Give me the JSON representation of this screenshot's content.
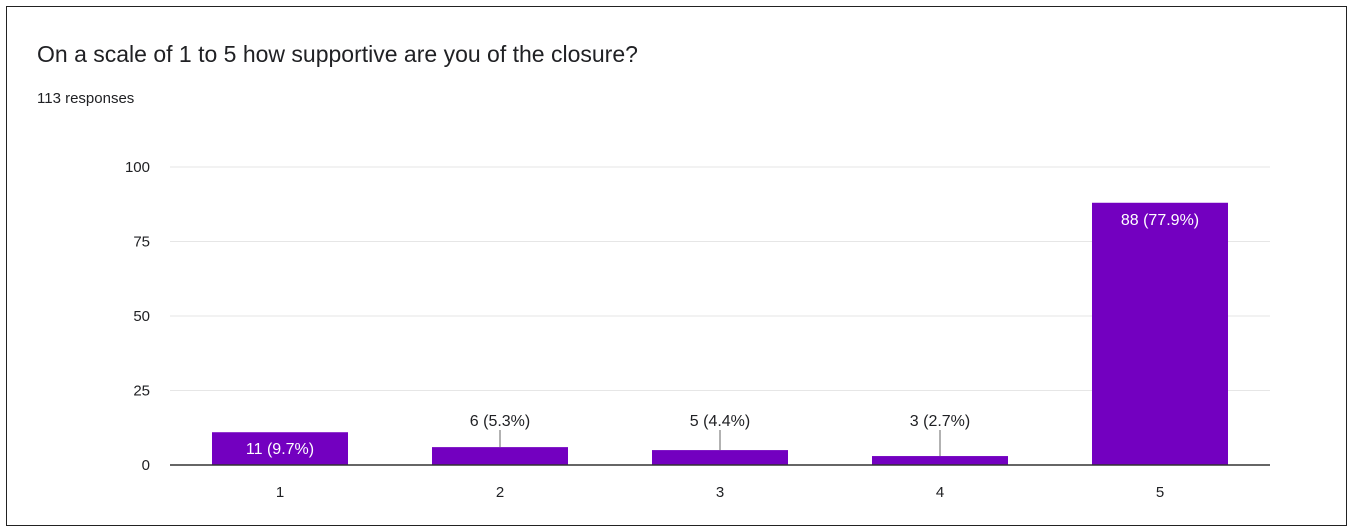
{
  "card": {
    "title": "On a scale of 1 to 5 how supportive are you of the closure?",
    "responses": "113 responses"
  },
  "colors": {
    "bar": "#7300c0",
    "grid": "#e6e6e6",
    "axis": "#333333",
    "text": "#202124",
    "label_inside": "#ffffff"
  },
  "chart_data": {
    "type": "bar",
    "title": "",
    "xlabel": "",
    "ylabel": "",
    "categories": [
      "1",
      "2",
      "3",
      "4",
      "5"
    ],
    "values": [
      11,
      6,
      5,
      3,
      88
    ],
    "data_labels": [
      "11 (9.7%)",
      "6 (5.3%)",
      "5 (4.4%)",
      "3 (2.7%)",
      "88 (77.9%)"
    ],
    "label_position": [
      "inside",
      "above",
      "above",
      "above",
      "inside"
    ],
    "ylim": [
      0,
      100
    ],
    "yticks": [
      0,
      25,
      50,
      75,
      100
    ],
    "grid": true,
    "legend": "none"
  }
}
